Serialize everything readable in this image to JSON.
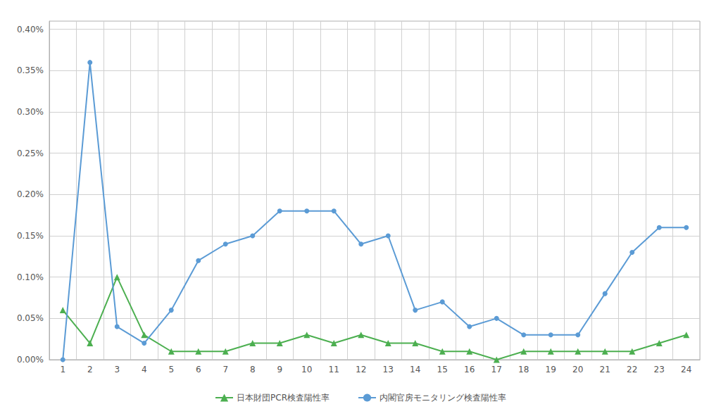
{
  "chart_data": {
    "type": "line",
    "categories": [
      1,
      2,
      3,
      4,
      5,
      6,
      7,
      8,
      9,
      10,
      11,
      12,
      13,
      14,
      15,
      16,
      17,
      18,
      19,
      20,
      21,
      22,
      23,
      24
    ],
    "series": [
      {
        "name": "日本財団PCR検査陽性率",
        "color": "#4caf50",
        "marker": "triangle",
        "line_style": "solid",
        "values": [
          0.0006,
          0.0002,
          0.001,
          0.0003,
          0.0001,
          0.0001,
          0.0001,
          0.0002,
          0.0002,
          0.0003,
          0.0002,
          0.0003,
          0.0002,
          0.0002,
          0.0001,
          0.0001,
          0.0,
          0.0001,
          0.0001,
          0.0001,
          0.0001,
          0.0001,
          0.0002,
          0.0003
        ]
      },
      {
        "name": "内閣官房モニタリング検査陽性率",
        "color": "#5b9bd5",
        "marker": "circle",
        "line_style": "solid",
        "values": [
          0.0,
          0.0036,
          0.0004,
          0.0002,
          0.0006,
          0.0012,
          0.0014,
          0.0015,
          0.0018,
          0.0018,
          0.0018,
          0.0014,
          0.0015,
          0.0006,
          0.0007,
          0.0004,
          0.0005,
          0.0003,
          0.0003,
          0.0003,
          0.0008,
          0.0013,
          0.0016,
          0.0016
        ]
      }
    ],
    "ylim": [
      0.0,
      0.0041
    ],
    "yticks": [
      {
        "value": 0.0,
        "label": "0.00%"
      },
      {
        "value": 0.0005,
        "label": "0.05%"
      },
      {
        "value": 0.001,
        "label": "0.10%"
      },
      {
        "value": 0.0015,
        "label": "0.15%"
      },
      {
        "value": 0.002,
        "label": "0.20%"
      },
      {
        "value": 0.0025,
        "label": "0.25%"
      },
      {
        "value": 0.003,
        "label": "0.30%"
      },
      {
        "value": 0.0035,
        "label": "0.35%"
      },
      {
        "value": 0.004,
        "label": "0.40%"
      }
    ],
    "grid": true,
    "legend": "bottom"
  }
}
